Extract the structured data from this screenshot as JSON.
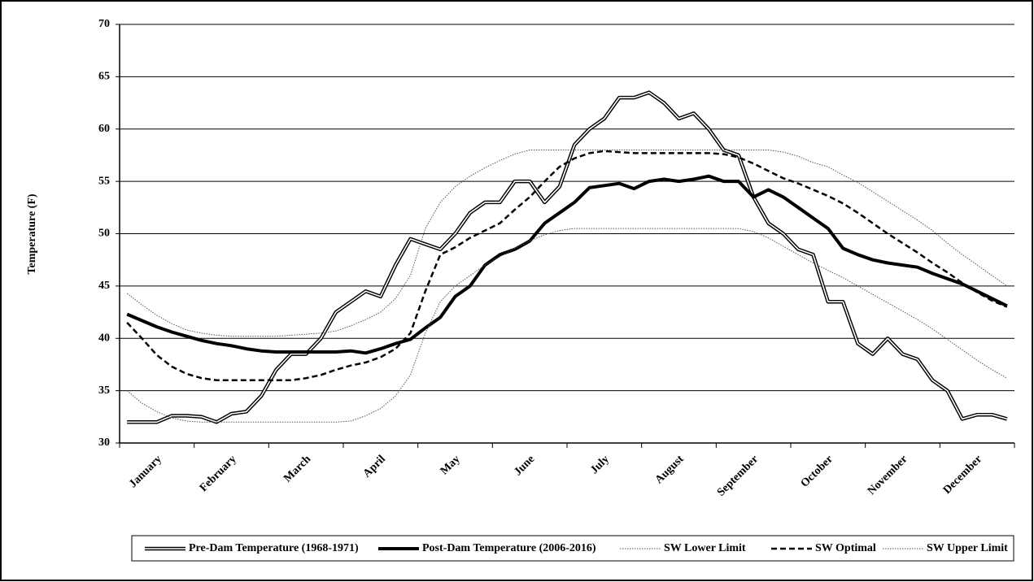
{
  "chart_data": {
    "type": "line",
    "y_label": "Temperature (F)",
    "categories": [
      null,
      null,
      "January",
      null,
      null,
      null,
      null,
      "February",
      null,
      null,
      null,
      null,
      "March",
      null,
      null,
      null,
      null,
      "April",
      null,
      null,
      null,
      null,
      "May",
      null,
      null,
      null,
      null,
      "June",
      null,
      null,
      null,
      null,
      "July",
      null,
      null,
      null,
      null,
      "August",
      null,
      null,
      null,
      null,
      "September",
      null,
      null,
      null,
      null,
      "October",
      null,
      null,
      null,
      null,
      "November",
      null,
      null,
      null,
      null,
      "December",
      null,
      null
    ],
    "ylim": [
      30,
      70
    ],
    "yticks": [
      30,
      35,
      40,
      45,
      50,
      55,
      60,
      65,
      70
    ],
    "grid": true,
    "legend": "bottom",
    "series": [
      {
        "name": "Pre-Dam Temperature (1968-1971)",
        "color": "#000000",
        "style": "double",
        "values": [
          32,
          32,
          32,
          32.6,
          32.6,
          32.5,
          32,
          32.8,
          33,
          34.5,
          37,
          38.5,
          38.5,
          40,
          42.5,
          43.5,
          44.5,
          44,
          47,
          49.5,
          49,
          48.5,
          50,
          52,
          53,
          53,
          55,
          55,
          53,
          54.5,
          58.5,
          60,
          61,
          63,
          63,
          63.5,
          62.5,
          61,
          61.5,
          60,
          58,
          57.5,
          53.5,
          51,
          50,
          48.5,
          48,
          43.5,
          43.5,
          39.5,
          38.5,
          40,
          38.5,
          38,
          36,
          35,
          32.3,
          32.7,
          32.7,
          32.3
        ]
      },
      {
        "name": "Post-Dam Temperature (2006-2016)",
        "color": "#000000",
        "style": "thick",
        "values": [
          42.3,
          41.7,
          41.1,
          40.6,
          40.2,
          39.8,
          39.5,
          39.3,
          39,
          38.8,
          38.7,
          38.7,
          38.7,
          38.7,
          38.7,
          38.8,
          38.6,
          39,
          39.5,
          39.9,
          41,
          42,
          44,
          45,
          47,
          48,
          48.5,
          49.3,
          51,
          52,
          53,
          54.4,
          54.6,
          54.8,
          54.3,
          55,
          55.2,
          55,
          55.2,
          55.5,
          55,
          55,
          53.5,
          54.2,
          53.5,
          52.5,
          51.5,
          50.5,
          48.6,
          48,
          47.5,
          47.2,
          47,
          46.8,
          46.2,
          45.7,
          45.2,
          44.5,
          43.8,
          43.1
        ]
      },
      {
        "name": "SW Lower Limit",
        "color": "#000000",
        "style": "dotted",
        "values": [
          35,
          33.8,
          33,
          32.4,
          32.1,
          32,
          32,
          32,
          32,
          32,
          32,
          32,
          32,
          32,
          32,
          32.1,
          32.6,
          33.3,
          34.5,
          36.5,
          40.5,
          43.5,
          45,
          46,
          47,
          47.8,
          48.6,
          49.3,
          49.9,
          50.3,
          50.5,
          50.5,
          50.5,
          50.5,
          50.5,
          50.5,
          50.5,
          50.5,
          50.5,
          50.5,
          50.5,
          50.5,
          50.2,
          49.6,
          48.8,
          48,
          47.2,
          46.5,
          45.8,
          45,
          44.2,
          43.4,
          42.6,
          41.8,
          40.9,
          39.9,
          38.9,
          37.9,
          37,
          36.2
        ]
      },
      {
        "name": "SW Optimal",
        "color": "#000000",
        "style": "dashed",
        "values": [
          41.5,
          40,
          38.4,
          37.3,
          36.6,
          36.2,
          36,
          36,
          36,
          36,
          36,
          36,
          36.2,
          36.5,
          37,
          37.4,
          37.7,
          38.2,
          39,
          40.5,
          44.5,
          48,
          48.7,
          49.6,
          50.3,
          51,
          52.3,
          53.5,
          55,
          56.4,
          57.2,
          57.7,
          57.9,
          57.8,
          57.7,
          57.7,
          57.7,
          57.7,
          57.7,
          57.7,
          57.6,
          57.3,
          56.7,
          56,
          55.3,
          54.8,
          54.2,
          53.6,
          52.9,
          52,
          51,
          50,
          49.1,
          48.2,
          47.2,
          46.3,
          45.3,
          44.4,
          43.6,
          43
        ]
      },
      {
        "name": "SW Upper Limit",
        "color": "#000000",
        "style": "dotted",
        "values": [
          44.3,
          43.2,
          42.2,
          41.4,
          40.8,
          40.5,
          40.3,
          40.2,
          40.2,
          40.2,
          40.2,
          40.3,
          40.4,
          40.5,
          40.7,
          41.2,
          41.8,
          42.5,
          43.8,
          46,
          50.5,
          53,
          54.5,
          55.5,
          56.3,
          57,
          57.6,
          58,
          58,
          58,
          58,
          58,
          58,
          58,
          58,
          58,
          58,
          58,
          58,
          58,
          58,
          58,
          58,
          58,
          57.8,
          57.4,
          56.8,
          56.4,
          55.6,
          54.9,
          54,
          53.1,
          52.2,
          51.3,
          50.3,
          49.1,
          48,
          47,
          46,
          45
        ]
      }
    ]
  }
}
